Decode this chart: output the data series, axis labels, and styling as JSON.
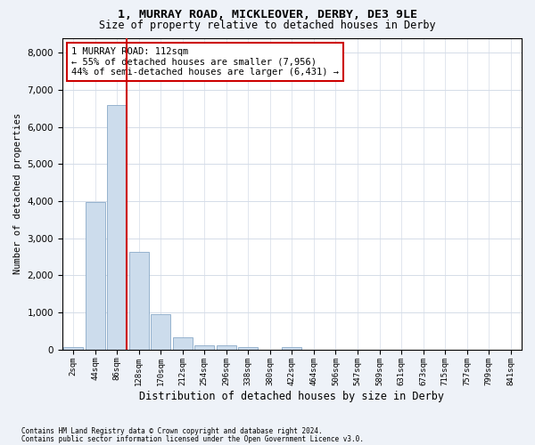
{
  "title": "1, MURRAY ROAD, MICKLEOVER, DERBY, DE3 9LE",
  "subtitle": "Size of property relative to detached houses in Derby",
  "xlabel": "Distribution of detached houses by size in Derby",
  "ylabel": "Number of detached properties",
  "footnote1": "Contains HM Land Registry data © Crown copyright and database right 2024.",
  "footnote2": "Contains public sector information licensed under the Open Government Licence v3.0.",
  "bar_labels": [
    "2sqm",
    "44sqm",
    "86sqm",
    "128sqm",
    "170sqm",
    "212sqm",
    "254sqm",
    "296sqm",
    "338sqm",
    "380sqm",
    "422sqm",
    "464sqm",
    "506sqm",
    "547sqm",
    "589sqm",
    "631sqm",
    "673sqm",
    "715sqm",
    "757sqm",
    "799sqm",
    "841sqm"
  ],
  "bar_heights": [
    60,
    3980,
    6600,
    2620,
    960,
    320,
    110,
    100,
    65,
    0,
    60,
    0,
    0,
    0,
    0,
    0,
    0,
    0,
    0,
    0,
    0
  ],
  "bar_color": "#ccdcec",
  "bar_edge_color": "#8aaac8",
  "property_line_color": "#cc0000",
  "annotation_text": "1 MURRAY ROAD: 112sqm\n← 55% of detached houses are smaller (7,956)\n44% of semi-detached houses are larger (6,431) →",
  "annotation_box_color": "#ffffff",
  "annotation_box_edge": "#cc0000",
  "ylim": [
    0,
    8400
  ],
  "yticks": [
    0,
    1000,
    2000,
    3000,
    4000,
    5000,
    6000,
    7000,
    8000
  ],
  "bg_color": "#eef2f8",
  "plot_bg_color": "#ffffff",
  "grid_color": "#d4dce8"
}
